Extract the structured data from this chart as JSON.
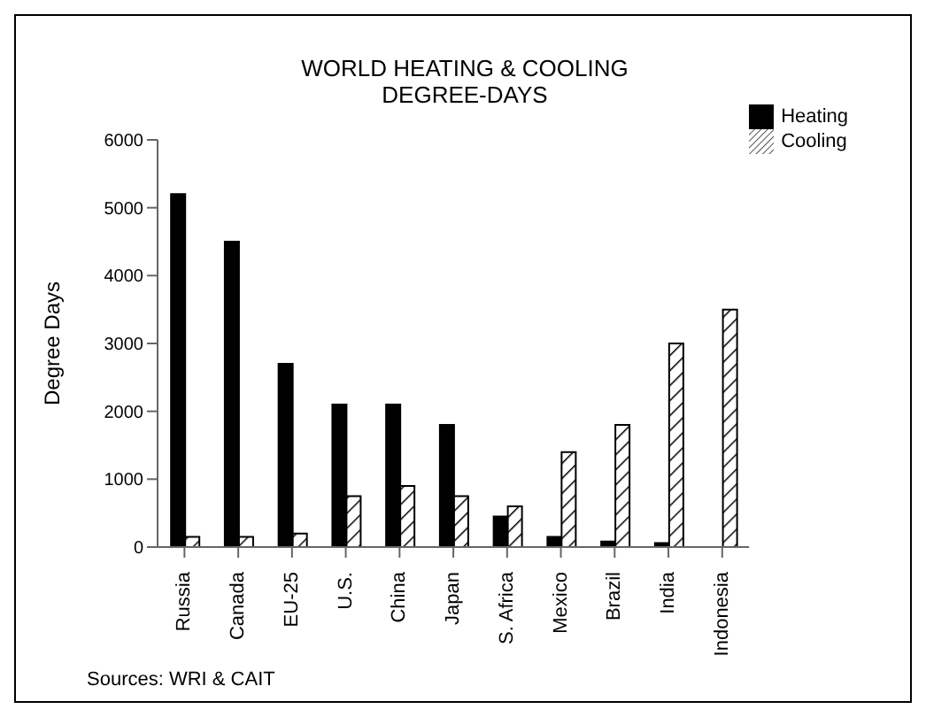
{
  "chart_data": {
    "type": "bar",
    "title": "WORLD HEATING & COOLING\nDEGREE-DAYS",
    "ylabel": "Degree Days",
    "categories": [
      "Russia",
      "Canada",
      "EU-25",
      "U.S.",
      "China",
      "Japan",
      "S. Africa",
      "Mexico",
      "Brazil",
      "India",
      "Indonesia"
    ],
    "series": [
      {
        "name": "Heating",
        "color": "#000000",
        "values": [
          5200,
          4500,
          2700,
          2100,
          2100,
          1800,
          450,
          150,
          80,
          60,
          0
        ]
      },
      {
        "name": "Cooling",
        "color": "#000000",
        "values": [
          150,
          150,
          200,
          750,
          900,
          750,
          600,
          1400,
          1800,
          3000,
          3500
        ]
      }
    ],
    "ylim": [
      0,
      6000
    ],
    "yticks": [
      0,
      1000,
      2000,
      3000,
      4000,
      5000,
      6000
    ],
    "grid": false,
    "legend": "top right",
    "annotations": [
      "Sources: WRI & CAIT"
    ]
  }
}
